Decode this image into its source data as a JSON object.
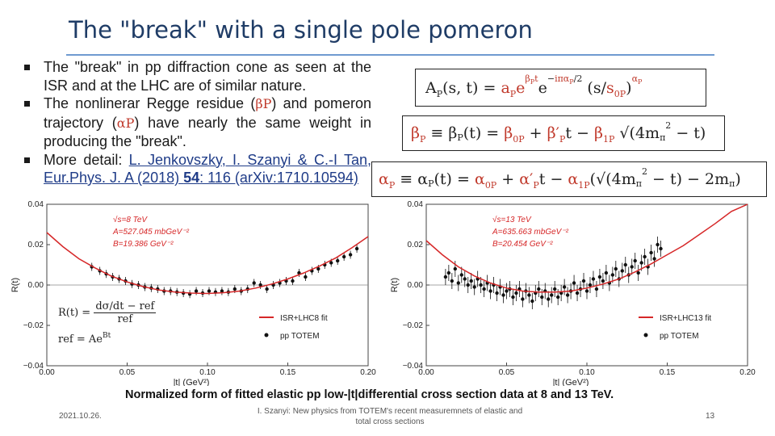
{
  "slide": {
    "title": "The \"break\" with a single pole pomeron",
    "bullets": {
      "b1": "The \"break\" in pp diffraction cone as seen at the ISR and at the LHC are of similar nature.",
      "b2_pre": "The nonlinerar Regge residue (",
      "b2_beta": "βP",
      "b2_mid": ") and pomeron trajectory (",
      "b2_alpha": "αP",
      "b2_post": ") have nearly the same weight in producing the \"break\".",
      "b3_pre": "More detail: ",
      "b3_link1": "L. Jenkovszky, I. Szanyi & C.-I Tan,",
      "b3_link2": "Eur.Phys. J. A (2018) ",
      "b3_link_bold": "54",
      "b3_link3": ": 116 (arXiv:1710.10594)"
    },
    "formulas": {
      "amp_lhs": "AP(s, t) = ",
      "amp_a": "aP",
      "amp_exp1": "βPt",
      "amp_e": "e",
      "amp_exp2": "−iπαP/2",
      "amp_tail": "(s/s0P)",
      "amp_tail_exp": "αP",
      "beta": "βP ≡ βP(t) = β0P + β′P t − β1P √(4mπ² − t)",
      "alpha": "αP ≡ αP(t) = α0P + α′P t − α1P (√(4mπ² − t) − 2mπ)"
    },
    "inset": {
      "line1": "R(t) = (dσ/dt − ref) / ref",
      "line2": "ref = Ae^Bt"
    },
    "caption": "Normalized form of fitted elastic pp low-|t|differential cross section data at 8 and 13 TeV.",
    "footer": {
      "date": "2021.10.26.",
      "center": "I. Szanyi: New physics from TOTEM's recent measuremnets of elastic and total cross sections",
      "page": "13"
    }
  },
  "colors": {
    "fit_line": "#d62728",
    "points": "#111111",
    "title": "#1f3c66",
    "accent_rule": "#6f9ad0",
    "greek": "#c0392b"
  },
  "chart_data": [
    {
      "type": "scatter",
      "xlabel": "|t| (GeV²)",
      "ylabel": "R(t)",
      "xlim": [
        0.0,
        0.2
      ],
      "ylim": [
        -0.04,
        0.04
      ],
      "xticks": [
        "0.00",
        "0.05",
        "0.10",
        "0.15",
        "0.20"
      ],
      "yticks": [
        "−0.04",
        "−0.02",
        "0.00",
        "0.02",
        "0.04"
      ],
      "annotations": [
        "√s=8 TeV",
        "A=527.045 mbGeV⁻²",
        "B=19.386 GeV⁻²"
      ],
      "legend": [
        "ISR+LHC8 fit",
        "pp TOTEM"
      ],
      "legend_position": "lower-right",
      "series": [
        {
          "name": "ISR+LHC8 fit",
          "kind": "line",
          "x": [
            0.0,
            0.01,
            0.02,
            0.03,
            0.04,
            0.05,
            0.06,
            0.07,
            0.08,
            0.09,
            0.1,
            0.11,
            0.12,
            0.13,
            0.14,
            0.15,
            0.16,
            0.17,
            0.18,
            0.19,
            0.2
          ],
          "y": [
            0.026,
            0.019,
            0.013,
            0.0085,
            0.0045,
            0.0015,
            -0.0008,
            -0.0025,
            -0.0035,
            -0.004,
            -0.0042,
            -0.0038,
            -0.003,
            -0.0015,
            0.0005,
            0.003,
            0.006,
            0.0095,
            0.0135,
            0.0185,
            0.024
          ]
        },
        {
          "name": "pp TOTEM",
          "kind": "points",
          "x": [
            0.028,
            0.033,
            0.037,
            0.041,
            0.045,
            0.049,
            0.053,
            0.057,
            0.061,
            0.065,
            0.069,
            0.073,
            0.077,
            0.081,
            0.085,
            0.089,
            0.093,
            0.097,
            0.101,
            0.105,
            0.109,
            0.113,
            0.117,
            0.121,
            0.125,
            0.129,
            0.133,
            0.137,
            0.141,
            0.145,
            0.149,
            0.153,
            0.157,
            0.161,
            0.165,
            0.169,
            0.173,
            0.177,
            0.181,
            0.185,
            0.189,
            0.193
          ],
          "y": [
            0.009,
            0.007,
            0.0055,
            0.004,
            0.003,
            0.002,
            0.0005,
            0.0,
            -0.001,
            -0.0015,
            -0.002,
            -0.003,
            -0.003,
            -0.0035,
            -0.004,
            -0.0045,
            -0.003,
            -0.004,
            -0.003,
            -0.0035,
            -0.003,
            -0.0035,
            -0.002,
            -0.003,
            -0.002,
            0.001,
            0.0,
            -0.002,
            0.0,
            0.001,
            0.002,
            0.002,
            0.006,
            0.004,
            0.007,
            0.008,
            0.01,
            0.011,
            0.012,
            0.014,
            0.015,
            0.018
          ],
          "err": 0.002
        }
      ]
    },
    {
      "type": "scatter",
      "xlabel": "|t| (GeV²)",
      "ylabel": "R(t)",
      "xlim": [
        0.0,
        0.2
      ],
      "ylim": [
        -0.04,
        0.04
      ],
      "xticks": [
        "0.00",
        "0.05",
        "0.10",
        "0.15",
        "0.20"
      ],
      "yticks": [
        "−0.04",
        "−0.02",
        "0.00",
        "0.02",
        "0.04"
      ],
      "annotations": [
        "√s=13 TeV",
        "A=635.663 mbGeV⁻²",
        "B=20.454 GeV⁻²"
      ],
      "legend": [
        "ISR+LHC13 fit",
        "pp TOTEM"
      ],
      "legend_position": "lower-right",
      "series": [
        {
          "name": "ISR+LHC13 fit",
          "kind": "line",
          "x": [
            0.0,
            0.01,
            0.02,
            0.03,
            0.04,
            0.05,
            0.06,
            0.07,
            0.08,
            0.09,
            0.1,
            0.11,
            0.12,
            0.13,
            0.14,
            0.15,
            0.16,
            0.17,
            0.18,
            0.19,
            0.2
          ],
          "y": [
            0.022,
            0.015,
            0.009,
            0.0045,
            0.001,
            -0.0015,
            -0.003,
            -0.0035,
            -0.0035,
            -0.003,
            -0.0015,
            0.0005,
            0.003,
            0.0065,
            0.0105,
            0.015,
            0.0195,
            0.025,
            0.0305,
            0.0365,
            0.043
          ]
        },
        {
          "name": "pp TOTEM",
          "kind": "points",
          "x": [
            0.012,
            0.014,
            0.016,
            0.018,
            0.02,
            0.022,
            0.024,
            0.026,
            0.028,
            0.03,
            0.032,
            0.034,
            0.036,
            0.038,
            0.04,
            0.042,
            0.044,
            0.046,
            0.048,
            0.05,
            0.052,
            0.054,
            0.056,
            0.058,
            0.06,
            0.062,
            0.064,
            0.066,
            0.068,
            0.07,
            0.072,
            0.074,
            0.076,
            0.078,
            0.08,
            0.082,
            0.084,
            0.086,
            0.088,
            0.09,
            0.092,
            0.094,
            0.096,
            0.098,
            0.1,
            0.102,
            0.104,
            0.106,
            0.108,
            0.11,
            0.112,
            0.114,
            0.116,
            0.118,
            0.12,
            0.122,
            0.124,
            0.126,
            0.128,
            0.13,
            0.132,
            0.134,
            0.136,
            0.138,
            0.14,
            0.142,
            0.144,
            0.146
          ],
          "y": [
            0.004,
            0.006,
            0.002,
            0.008,
            0.001,
            0.005,
            0.003,
            0.0,
            0.002,
            -0.001,
            0.003,
            0.0,
            -0.002,
            0.001,
            -0.003,
            0.0,
            -0.004,
            -0.001,
            -0.005,
            -0.003,
            -0.002,
            -0.006,
            -0.004,
            -0.002,
            -0.007,
            -0.003,
            -0.005,
            -0.008,
            -0.004,
            -0.002,
            -0.006,
            -0.003,
            -0.007,
            -0.005,
            -0.002,
            -0.006,
            -0.004,
            -0.001,
            -0.005,
            -0.003,
            0.001,
            -0.004,
            -0.002,
            0.002,
            -0.003,
            0.0,
            0.003,
            -0.002,
            0.004,
            0.002,
            0.006,
            0.001,
            0.005,
            0.008,
            0.003,
            0.007,
            0.01,
            0.005,
            0.009,
            0.012,
            0.006,
            0.011,
            0.014,
            0.009,
            0.016,
            0.013,
            0.02,
            0.018
          ],
          "err": 0.004
        }
      ]
    }
  ]
}
